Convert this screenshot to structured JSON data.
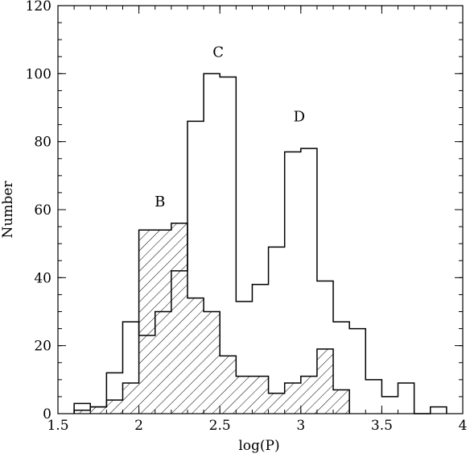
{
  "chart_data": {
    "type": "histogram",
    "xlabel": "log(P)",
    "ylabel": "Number",
    "xlim": [
      1.5,
      4
    ],
    "ylim": [
      0,
      120
    ],
    "x_ticks": [
      "1.5",
      "2",
      "2.5",
      "3",
      "3.5",
      "4"
    ],
    "y_ticks": [
      "0",
      "20",
      "40",
      "60",
      "80",
      "100",
      "120"
    ],
    "bin_width": 0.1,
    "series": [
      {
        "style": "open",
        "bin_start": 1.6,
        "values": [
          3,
          2,
          12,
          27,
          23,
          30,
          42,
          86,
          100,
          99,
          33,
          38,
          49,
          77,
          78,
          39,
          27,
          25,
          10,
          5,
          9,
          0,
          2
        ]
      },
      {
        "style": "hatched",
        "bin_start": 1.6,
        "values": [
          1,
          2,
          4,
          9,
          54,
          54,
          56,
          34,
          30,
          17,
          11,
          11,
          6,
          9,
          11,
          19,
          7
        ]
      }
    ],
    "annotations": [
      {
        "text": "B",
        "x": 2.13,
        "y": 61
      },
      {
        "text": "C",
        "x": 2.49,
        "y": 105
      },
      {
        "text": "D",
        "x": 2.99,
        "y": 86
      }
    ],
    "grid": false,
    "legend": "none"
  }
}
